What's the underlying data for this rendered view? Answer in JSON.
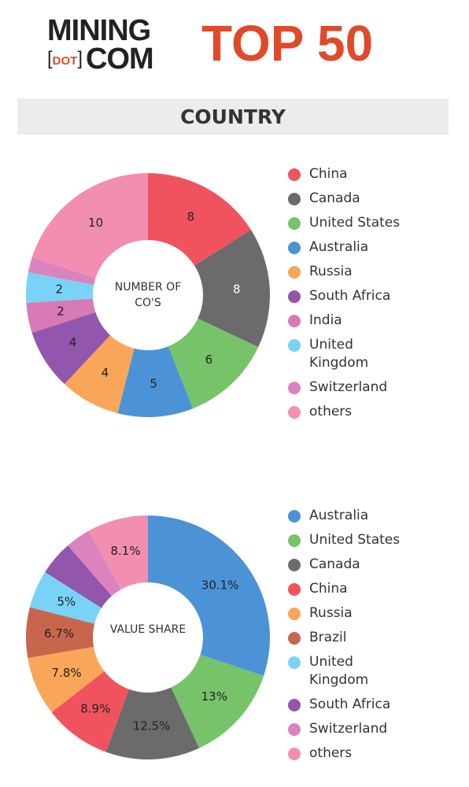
{
  "header": {
    "logo_top": "MINING",
    "logo_dot": "DOT",
    "logo_bottom": "COM",
    "title": "TOP 50",
    "section": "COUNTRY"
  },
  "chart_data": [
    {
      "type": "donut",
      "center_label": "NUMBER OF CO'S",
      "categories": [
        "China",
        "Canada",
        "United States",
        "Australia",
        "Russia",
        "South Africa",
        "India",
        "United Kingdom",
        "Switzerland",
        "others"
      ],
      "values": [
        8,
        8,
        6,
        5,
        4,
        4,
        2,
        2,
        1,
        10
      ],
      "colors": [
        "#f0535e",
        "#6b6b6b",
        "#77c36a",
        "#4b93d6",
        "#f9a65a",
        "#9256ad",
        "#d87ab5",
        "#79d3f7",
        "#dc82bf",
        "#f28fb1"
      ]
    },
    {
      "type": "donut",
      "center_label": "VALUE SHARE",
      "categories": [
        "Australia",
        "United States",
        "Canada",
        "China",
        "Russia",
        "Brazil",
        "United Kingdom",
        "South Africa",
        "Switzerland",
        "others"
      ],
      "values": [
        30.1,
        13,
        12.5,
        8.9,
        7.8,
        6.7,
        5,
        4.6,
        3.3,
        8.1
      ],
      "value_labels": [
        "30.1%",
        "13%",
        "12.5%",
        "8.9%",
        "7.8%",
        "6.7%",
        "5%",
        null,
        null,
        "8.1%"
      ],
      "colors": [
        "#4b93d6",
        "#77c36a",
        "#6b6b6b",
        "#f0535e",
        "#f9a65a",
        "#c8664d",
        "#79d3f7",
        "#9256ad",
        "#dc82bf",
        "#f28fb1"
      ]
    }
  ]
}
